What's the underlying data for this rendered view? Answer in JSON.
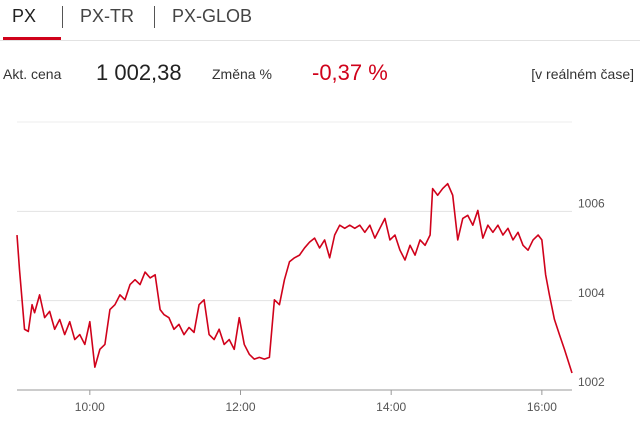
{
  "tabs": [
    "PX",
    "PX-TR",
    "PX-GLOB"
  ],
  "info": {
    "price_label": "Akt. cena",
    "price": "1 002,38",
    "change_label": "Změna %",
    "change": "-0,37 %",
    "realtime": "[v reálném čase]"
  },
  "chart_data": {
    "type": "line",
    "color": "#d0021b",
    "x": [
      542,
      544,
      548,
      551,
      554,
      556,
      560,
      564,
      568,
      572,
      576,
      580,
      584,
      588,
      592,
      596,
      600,
      604,
      608,
      612,
      616,
      620,
      624,
      628,
      632,
      636,
      640,
      644,
      648,
      652,
      656,
      659,
      663,
      667,
      671,
      675,
      679,
      683,
      687,
      691,
      695,
      699,
      703,
      707,
      711,
      715,
      719,
      723,
      727,
      731,
      735,
      739,
      743,
      747,
      751,
      755,
      759,
      763,
      767,
      771,
      775,
      779,
      783,
      787,
      791,
      795,
      799,
      803,
      807,
      811,
      815,
      819,
      823,
      827,
      831,
      835,
      839,
      843,
      847,
      851,
      855,
      859,
      863,
      867,
      871,
      873,
      877,
      881,
      885,
      889,
      893,
      897,
      901,
      905,
      909,
      913,
      917,
      921,
      925,
      929,
      933,
      937,
      941,
      945,
      949,
      953,
      957,
      960,
      963,
      966,
      970,
      974,
      978,
      984
    ],
    "values": [
      1005.47,
      1004.69,
      1003.36,
      1003.31,
      1003.91,
      1003.73,
      1004.13,
      1003.62,
      1003.76,
      1003.36,
      1003.58,
      1003.24,
      1003.53,
      1003.13,
      1003.24,
      1003.02,
      1003.53,
      1002.51,
      1002.91,
      1003.02,
      1003.8,
      1003.91,
      1004.13,
      1004.02,
      1004.36,
      1004.47,
      1004.36,
      1004.64,
      1004.51,
      1004.58,
      1003.8,
      1003.69,
      1003.62,
      1003.36,
      1003.47,
      1003.24,
      1003.4,
      1003.29,
      1003.91,
      1004.02,
      1003.24,
      1003.13,
      1003.36,
      1003.02,
      1003.13,
      1002.91,
      1003.62,
      1003.02,
      1002.8,
      1002.69,
      1002.73,
      1002.69,
      1002.73,
      1004.02,
      1003.91,
      1004.47,
      1004.87,
      1004.96,
      1005.02,
      1005.18,
      1005.31,
      1005.4,
      1005.18,
      1005.36,
      1004.96,
      1005.47,
      1005.69,
      1005.62,
      1005.69,
      1005.62,
      1005.69,
      1005.53,
      1005.69,
      1005.4,
      1005.62,
      1005.84,
      1005.36,
      1005.47,
      1005.13,
      1004.91,
      1005.24,
      1005.02,
      1005.36,
      1005.24,
      1005.47,
      1006.51,
      1006.36,
      1006.51,
      1006.62,
      1006.36,
      1005.36,
      1005.84,
      1005.91,
      1005.69,
      1006.02,
      1005.4,
      1005.69,
      1005.53,
      1005.69,
      1005.47,
      1005.62,
      1005.36,
      1005.53,
      1005.24,
      1005.13,
      1005.36,
      1005.47,
      1005.36,
      1004.58,
      1004.13,
      1003.58,
      1003.24,
      1002.91,
      1002.38
    ],
    "xlim": [
      542,
      984
    ],
    "xticks": [
      {
        "value": 600,
        "label": "10:00"
      },
      {
        "value": 720,
        "label": "12:00"
      },
      {
        "value": 840,
        "label": "14:00"
      },
      {
        "value": 960,
        "label": "16:00"
      }
    ],
    "ylim": [
      1002,
      1008
    ],
    "yticks": [
      1002,
      1004,
      1006
    ],
    "grid": true
  }
}
